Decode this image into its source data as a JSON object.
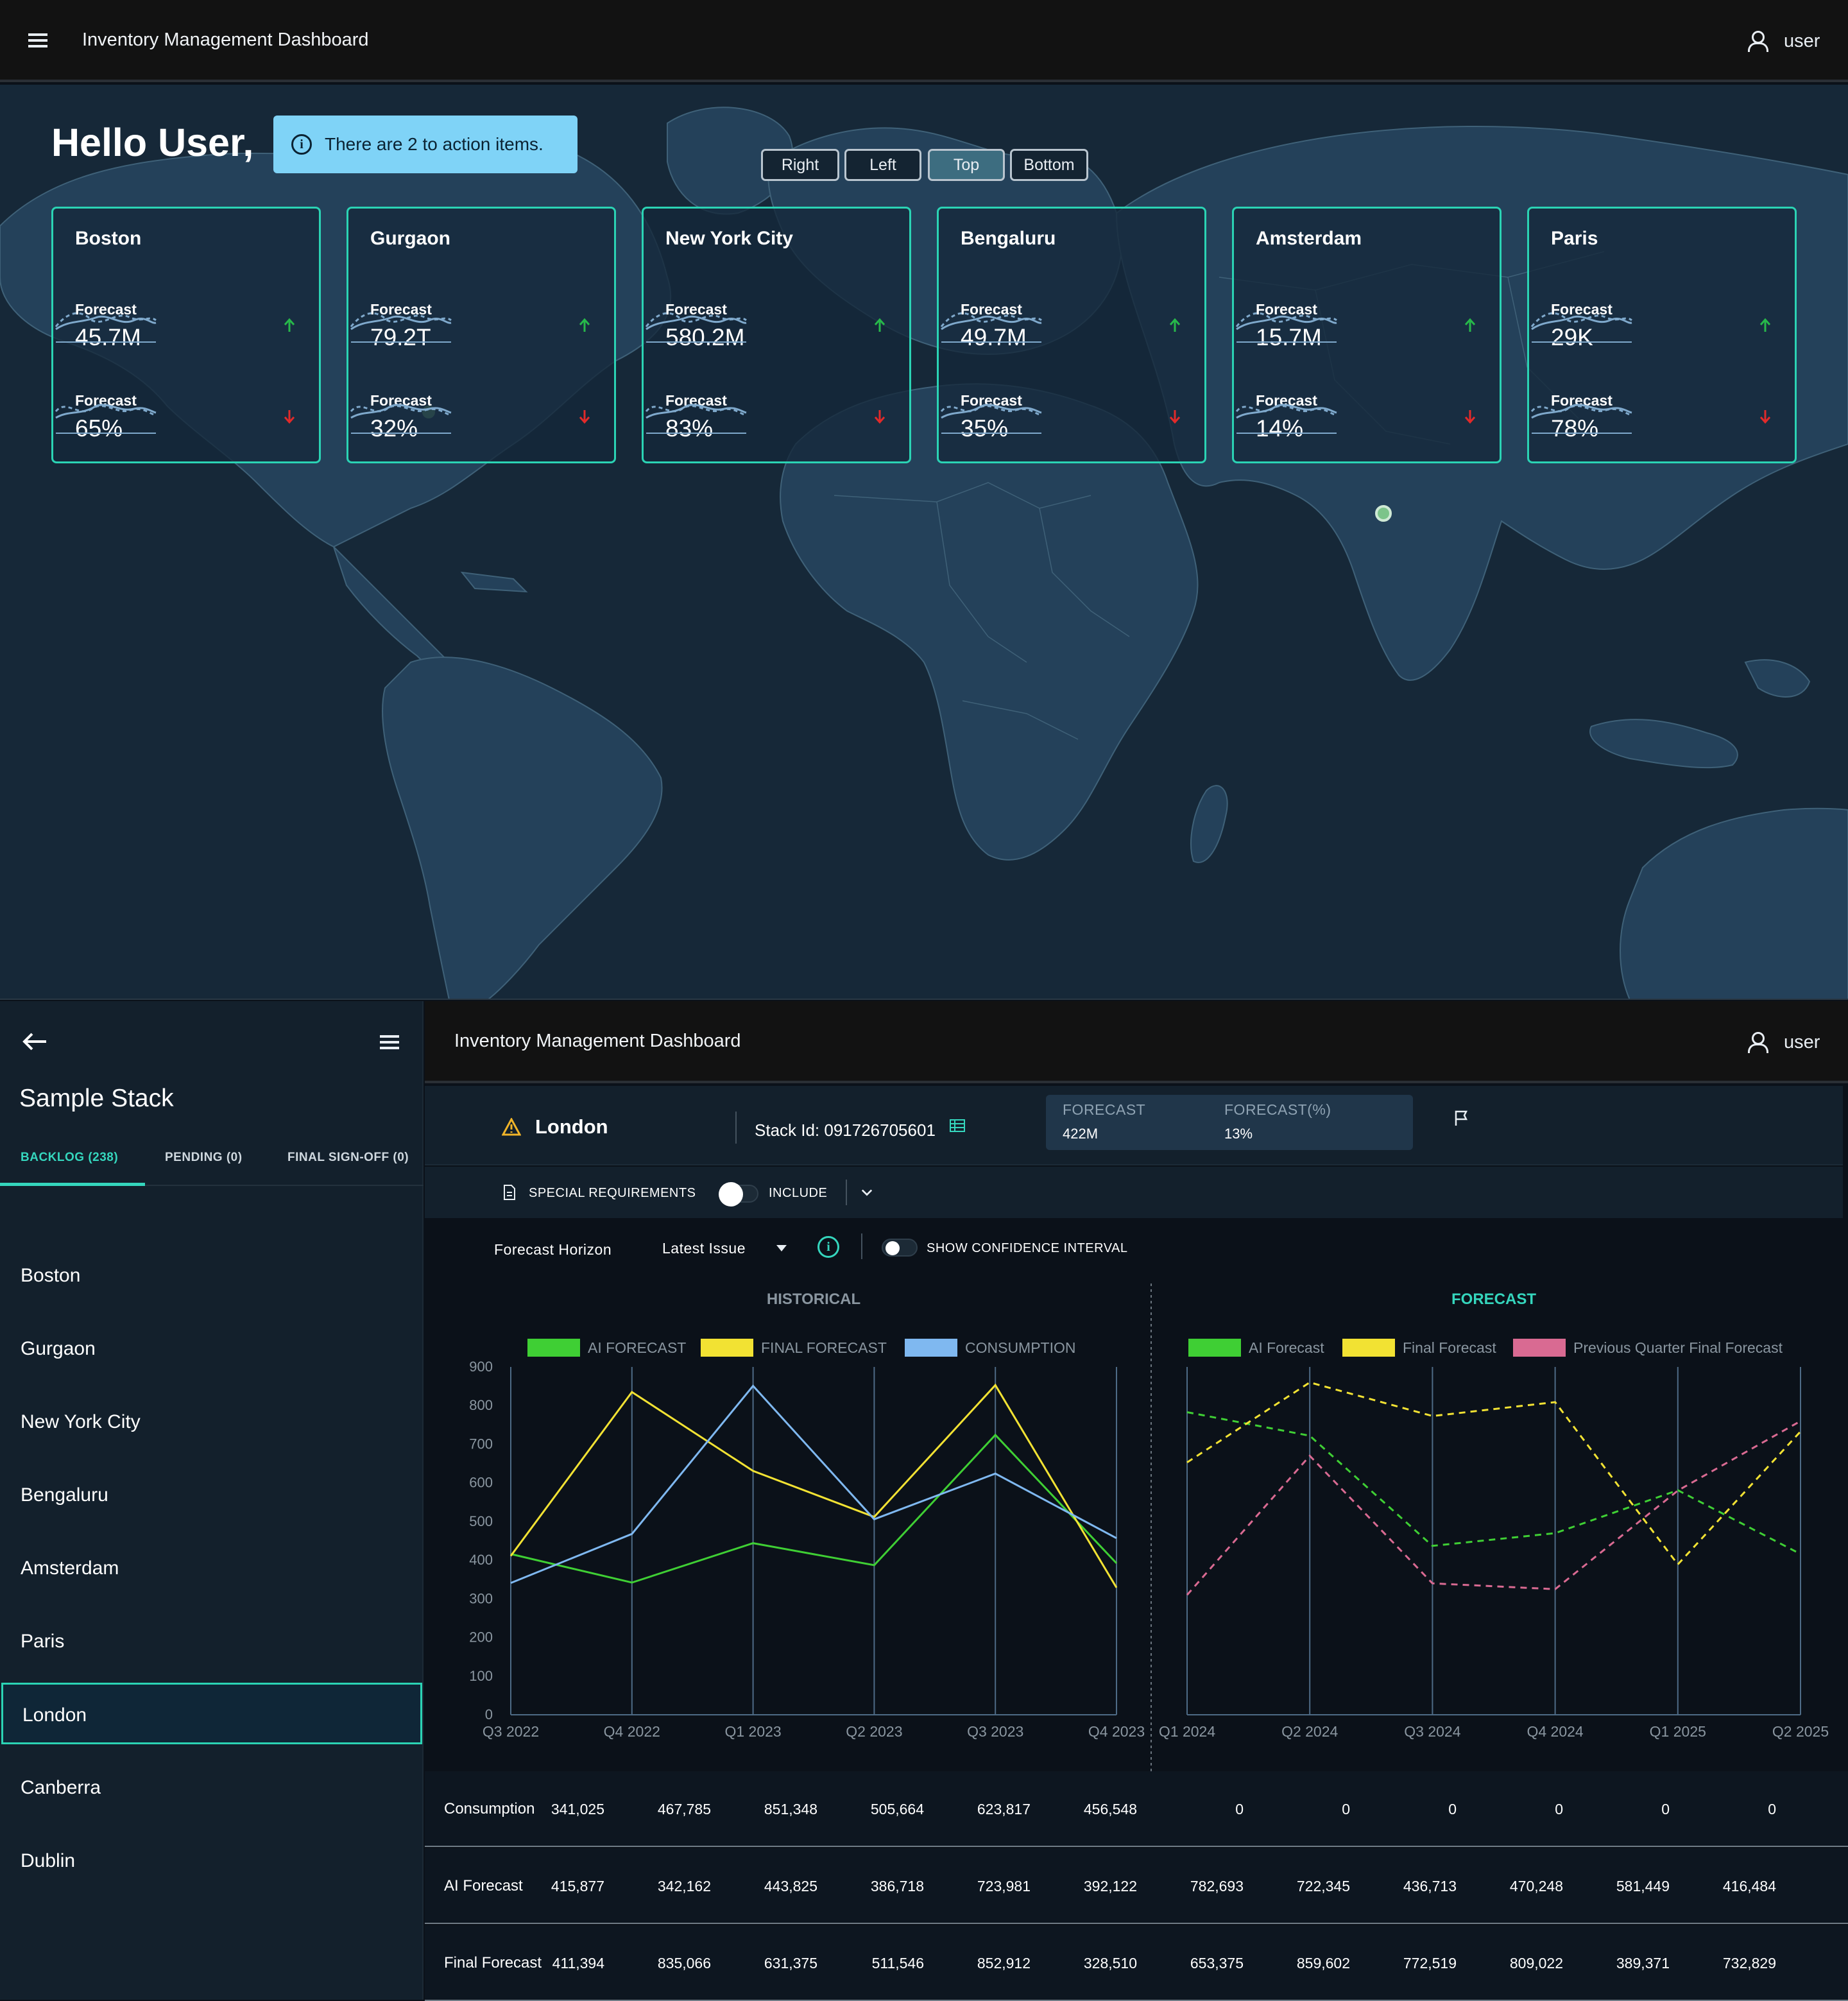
{
  "app": {
    "title": "Inventory Management Dashboard",
    "user": "user"
  },
  "map_view": {
    "greeting": "Hello User,",
    "notice": "There are 2 to action items.",
    "position_buttons": [
      "Right",
      "Left",
      "Top",
      "Bottom"
    ],
    "active_position": "Top",
    "cards": [
      {
        "city": "Boston",
        "label1": "Forecast",
        "value1": "45.7M",
        "trend1": "up",
        "label2": "Forecast",
        "value2": "65%",
        "trend2": "down"
      },
      {
        "city": "Gurgaon",
        "label1": "Forecast",
        "value1": "79.2T",
        "trend1": "up",
        "label2": "Forecast",
        "value2": "32%",
        "trend2": "down"
      },
      {
        "city": "New York City",
        "label1": "Forecast",
        "value1": "580.2M",
        "trend1": "up",
        "label2": "Forecast",
        "value2": "83%",
        "trend2": "down"
      },
      {
        "city": "Bengaluru",
        "label1": "Forecast",
        "value1": "49.7M",
        "trend1": "up",
        "label2": "Forecast",
        "value2": "35%",
        "trend2": "down"
      },
      {
        "city": "Amsterdam",
        "label1": "Forecast",
        "value1": "15.7M",
        "trend1": "up",
        "label2": "Forecast",
        "value2": "14%",
        "trend2": "down"
      },
      {
        "city": "Paris",
        "label1": "Forecast",
        "value1": "29K",
        "trend1": "up",
        "label2": "Forecast",
        "value2": "78%",
        "trend2": "down"
      }
    ]
  },
  "sidebar": {
    "title": "Sample Stack",
    "tabs": [
      "BACKLOG (238)",
      "PENDING (0)",
      "FINAL SIGN-OFF (0)"
    ],
    "items": [
      "Boston",
      "Gurgaon",
      "New York City",
      "Bengaluru",
      "Amsterdam",
      "Paris",
      "London",
      "Canberra",
      "Dublin"
    ],
    "selected": "London"
  },
  "detail": {
    "location": "London",
    "stack_id": "Stack Id: 091726705601",
    "forecast_label": "FORECAST",
    "forecast_value": "422M",
    "forecast_pct_label": "FORECAST(%)",
    "forecast_pct_value": "13%",
    "special_requirements": "SPECIAL REQUIREMENTS",
    "include": "INCLUDE",
    "forecast_horizon_label": "Forecast Horizon",
    "forecast_horizon_value": "Latest Issue",
    "confidence_label": "SHOW CONFIDENCE INTERVAL"
  },
  "colors": {
    "ai": "#3fcf34",
    "final": "#f2e233",
    "consumption": "#7fb8f0",
    "previous": "#d96a92",
    "accent": "#2bd3b4"
  },
  "chart_data": [
    {
      "type": "line",
      "title": "HISTORICAL",
      "categories": [
        "Q3 2022",
        "Q4 2022",
        "Q1 2023",
        "Q2 2023",
        "Q3 2023",
        "Q4 2023"
      ],
      "ylim": [
        0,
        900
      ],
      "yticks": [
        0,
        100,
        200,
        300,
        400,
        500,
        600,
        700,
        800,
        900
      ],
      "series": [
        {
          "name": "AI FORECAST",
          "values": [
            416,
            342,
            444,
            387,
            724,
            392
          ]
        },
        {
          "name": "FINAL FORECAST",
          "values": [
            411,
            835,
            631,
            512,
            853,
            329
          ]
        },
        {
          "name": "CONSUMPTION",
          "values": [
            341,
            468,
            851,
            506,
            624,
            457
          ]
        }
      ]
    },
    {
      "type": "line",
      "title": "FORECAST",
      "categories": [
        "Q1 2024",
        "Q2 2024",
        "Q3 2024",
        "Q4 2024",
        "Q1 2025",
        "Q2 2025"
      ],
      "ylim": [
        0,
        900
      ],
      "series": [
        {
          "name": "AI Forecast",
          "values": [
            783,
            722,
            437,
            470,
            581,
            416
          ]
        },
        {
          "name": "Final Forecast",
          "values": [
            653,
            860,
            773,
            809,
            389,
            733
          ]
        },
        {
          "name": "Previous Quarter Final Forecast",
          "values": [
            310,
            670,
            340,
            325,
            580,
            760
          ]
        }
      ]
    }
  ],
  "table": {
    "rows": [
      {
        "label": "Consumption",
        "values": [
          "341,025",
          "467,785",
          "851,348",
          "505,664",
          "623,817",
          "456,548",
          "0",
          "0",
          "0",
          "0",
          "0",
          "0"
        ]
      },
      {
        "label": "AI Forecast",
        "values": [
          "415,877",
          "342,162",
          "443,825",
          "386,718",
          "723,981",
          "392,122",
          "782,693",
          "722,345",
          "436,713",
          "470,248",
          "581,449",
          "416,484"
        ]
      },
      {
        "label": "Final Forecast",
        "values": [
          "411,394",
          "835,066",
          "631,375",
          "511,546",
          "852,912",
          "328,510",
          "653,375",
          "859,602",
          "772,519",
          "809,022",
          "389,371",
          "732,829"
        ]
      }
    ]
  }
}
